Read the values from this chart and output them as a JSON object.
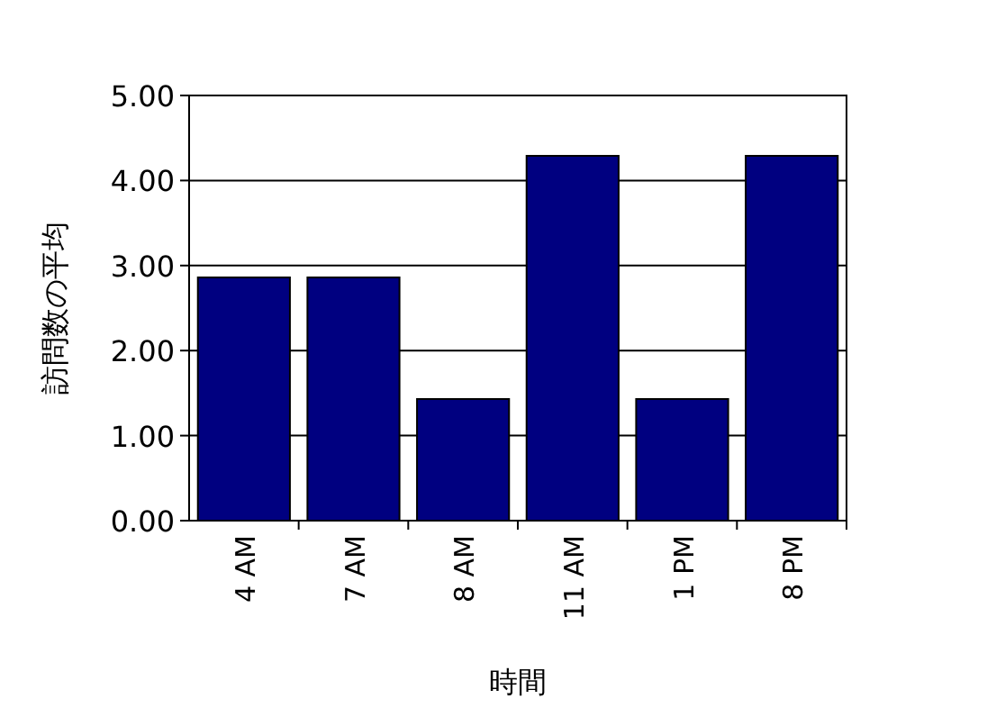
{
  "chart_data": {
    "type": "bar",
    "xlabel": "時間",
    "ylabel": "訪問数の平均",
    "categories": [
      "4 AM",
      "7 AM",
      "8 AM",
      "11 AM",
      "1 PM",
      "8 PM"
    ],
    "values": [
      2.86,
      2.86,
      1.43,
      4.29,
      1.43,
      4.29
    ],
    "color": "#000080",
    "ylim": [
      0,
      5
    ],
    "yticks": [
      {
        "value": 0,
        "label": "0.00"
      },
      {
        "value": 1,
        "label": "1.00"
      },
      {
        "value": 2,
        "label": "2.00"
      },
      {
        "value": 3,
        "label": "3.00"
      },
      {
        "value": 4,
        "label": "4.00"
      },
      {
        "value": 5,
        "label": "5.00"
      }
    ],
    "grid": "y"
  }
}
